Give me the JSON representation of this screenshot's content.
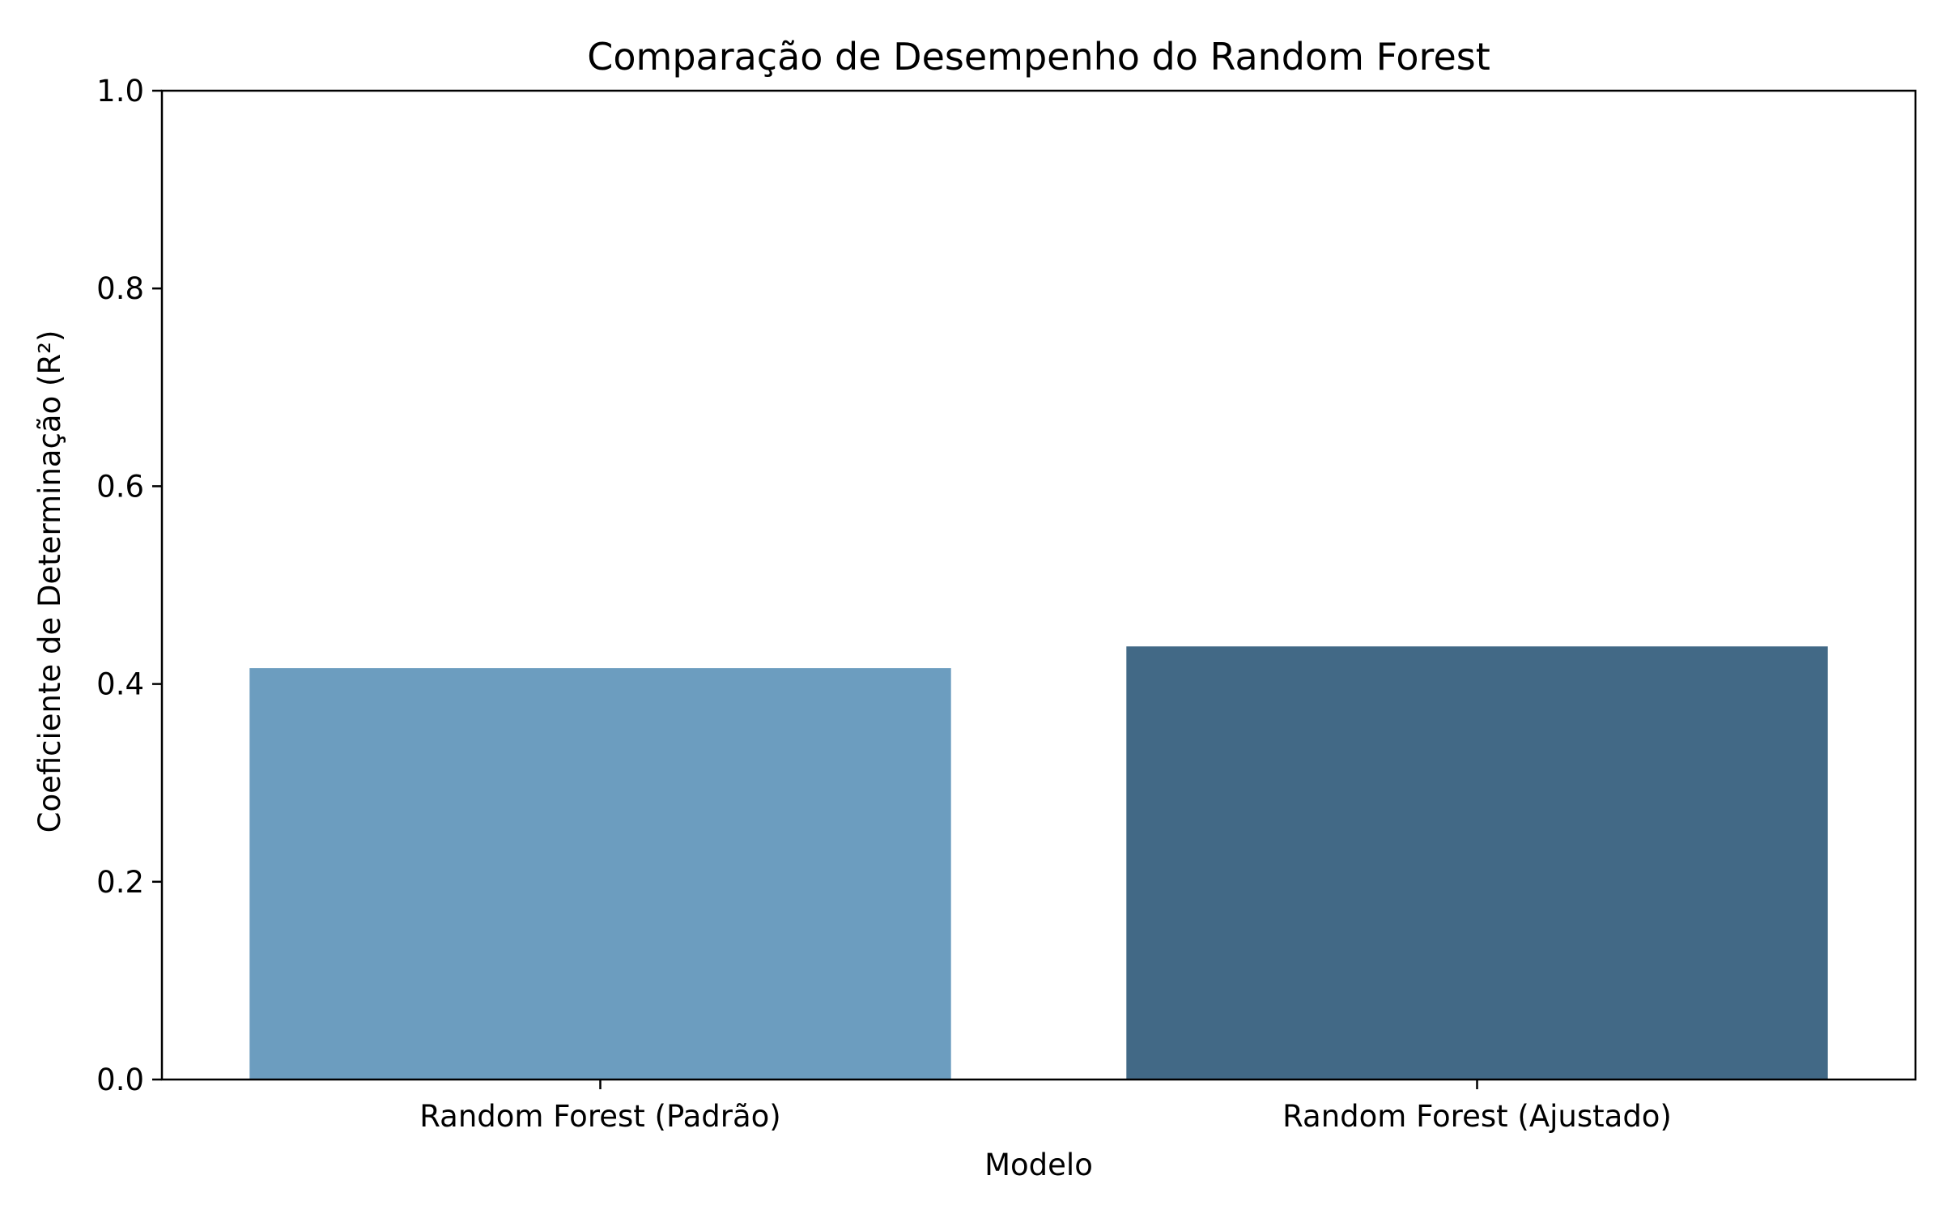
{
  "chart_data": {
    "type": "bar",
    "title": "Comparação de Desempenho do Random Forest",
    "xlabel": "Modelo",
    "ylabel": "Coeficiente de Determinação (R²)",
    "categories": [
      "Random Forest (Padrão)",
      "Random Forest (Ajustado)"
    ],
    "values": [
      0.416,
      0.438
    ],
    "ylim": [
      0,
      1.0
    ],
    "yticks": [
      "0.0",
      "0.2",
      "0.4",
      "0.6",
      "0.8",
      "1.0"
    ],
    "colors": [
      "#6c9dbf",
      "#426986"
    ],
    "grid": false,
    "legend": "none"
  }
}
